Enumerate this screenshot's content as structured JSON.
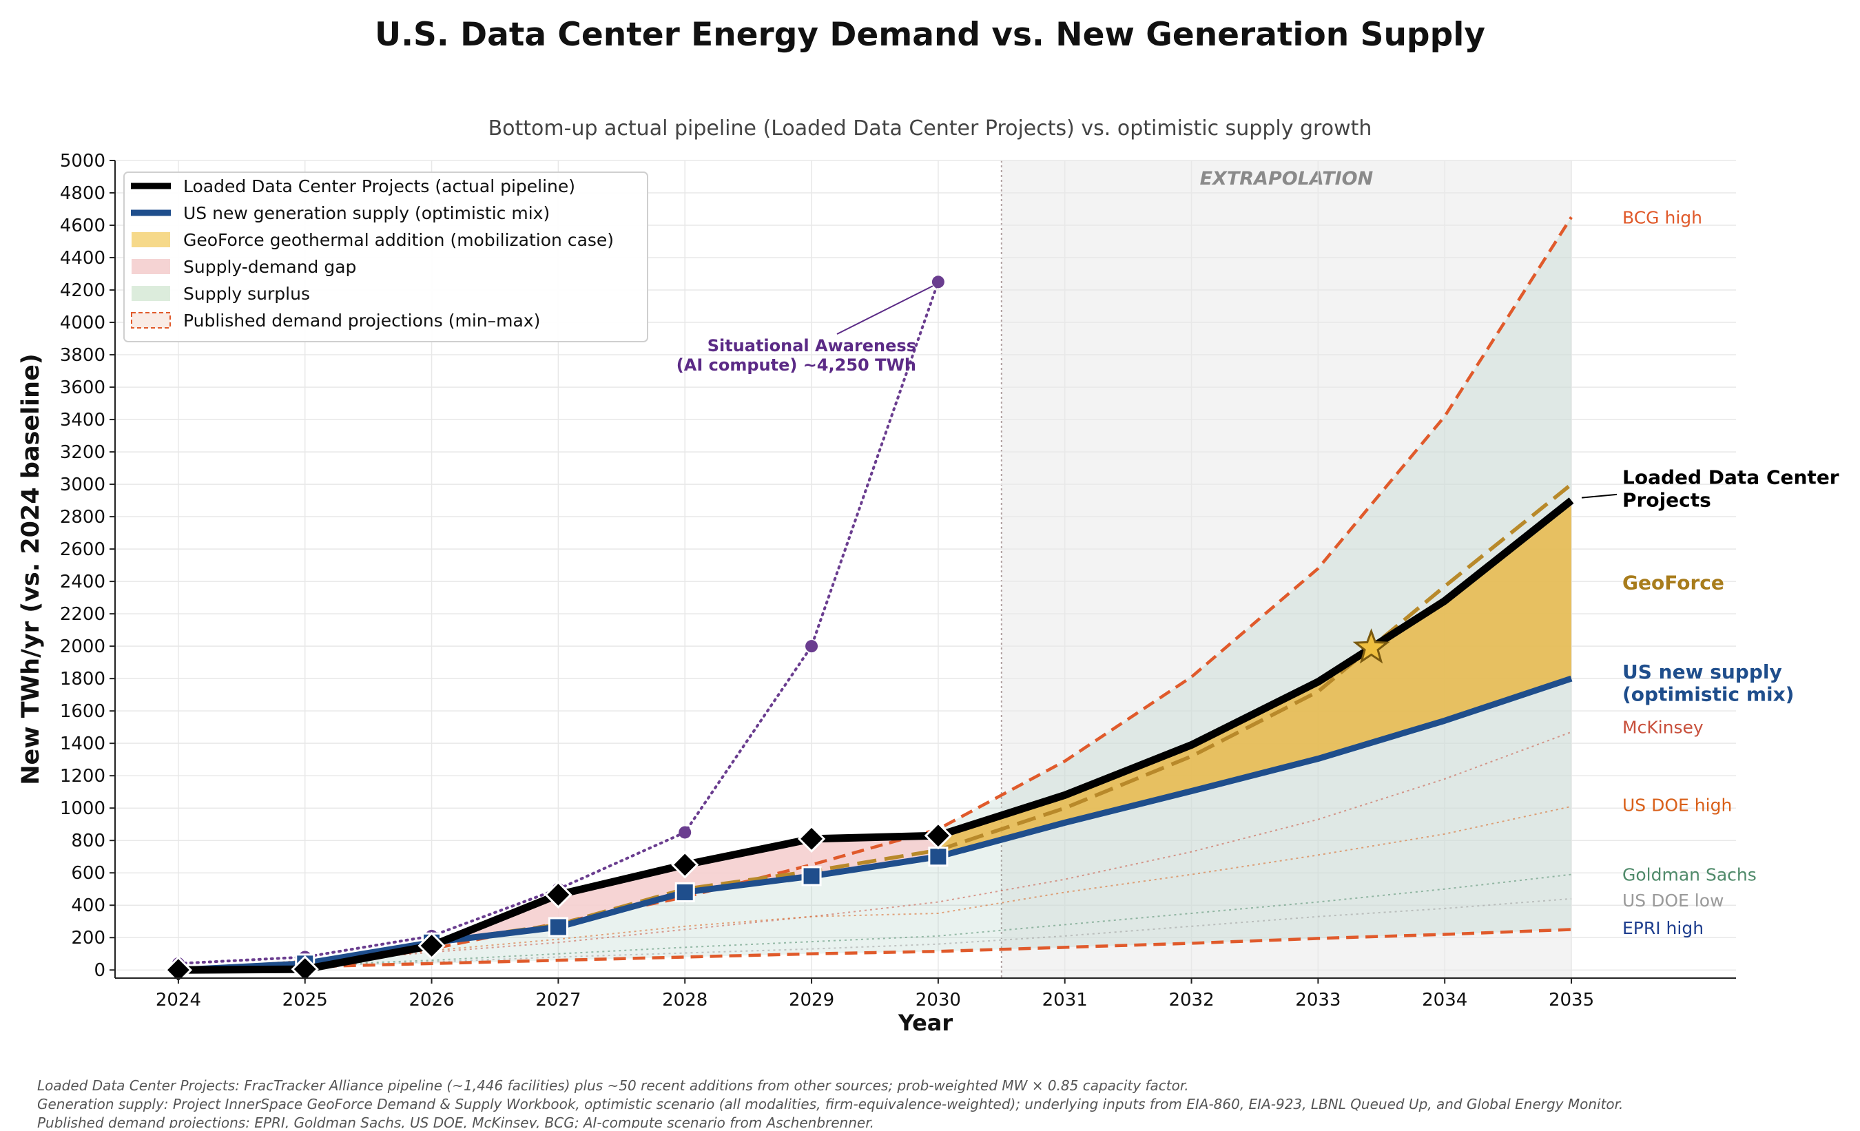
{
  "page": {
    "title": "U.S. Data Center Energy Demand vs. New Generation Supply",
    "subtitle": "Bottom-up actual pipeline (Loaded Data Center Projects) vs. optimistic supply growth",
    "footnotes": [
      "Loaded Data Center Projects: FracTracker Alliance pipeline (~1,446 facilities) plus ~50 recent additions from other sources; prob-weighted MW × 0.85 capacity factor.",
      "Generation supply: Project InnerSpace GeoForce Demand & Supply Workbook, optimistic scenario (all modalities, firm-equivalence-weighted); underlying inputs from EIA-860, EIA-923, LBNL Queued Up, and Global Energy Monitor.",
      "Published demand projections: EPRI, Goldman Sachs, US DOE, McKinsey, BCG; AI-compute scenario from Aschenbrenner."
    ]
  },
  "chart_data": {
    "type": "line",
    "title": "U.S. Data Center Energy Demand vs. New Generation Supply",
    "subtitle": "Bottom-up actual pipeline (Loaded Data Center Projects) vs. optimistic supply growth",
    "xlabel": "Year",
    "ylabel": "New TWh/yr (vs. 2024 baseline)",
    "xlim": [
      2023.5,
      2036.3
    ],
    "ylim": [
      -50,
      5000
    ],
    "x_ticks": [
      2024,
      2025,
      2026,
      2027,
      2028,
      2029,
      2030,
      2031,
      2032,
      2033,
      2034,
      2035
    ],
    "y_ticks": [
      0,
      200,
      400,
      600,
      800,
      1000,
      1200,
      1400,
      1600,
      1800,
      2000,
      2200,
      2400,
      2600,
      2800,
      3000,
      3200,
      3400,
      3600,
      3800,
      4000,
      4200,
      4400,
      4600,
      4800,
      5000
    ],
    "grid": true,
    "legend_position": "top-left",
    "extrapolation": {
      "start": 2030.5,
      "label": "EXTRAPOLATION"
    },
    "legend": [
      {
        "label": "Loaded Data Center Projects (actual pipeline)",
        "kind": "line",
        "color": "#000000"
      },
      {
        "label": "US new generation supply (optimistic mix)",
        "kind": "line",
        "color": "#1f4e8c"
      },
      {
        "label": "GeoForce geothermal addition (mobilization case)",
        "kind": "patch",
        "color": "#f6d98a"
      },
      {
        "label": "Supply-demand gap",
        "kind": "patch",
        "color": "#f5d3d3"
      },
      {
        "label": "Supply surplus",
        "kind": "patch",
        "color": "#dcecdc"
      },
      {
        "label": "Published demand projections (min–max)",
        "kind": "dashed-patch",
        "color": "#e05a2b"
      }
    ],
    "series": [
      {
        "name": "Loaded Data Center Projects",
        "role": "demand",
        "color": "#000000",
        "x": [
          2024,
          2025,
          2026,
          2027,
          2028,
          2029,
          2030,
          2031,
          2032,
          2033,
          2034,
          2035
        ],
        "values": [
          0,
          5,
          150,
          465,
          650,
          810,
          830,
          1080,
          1390,
          1780,
          2280,
          2900
        ]
      },
      {
        "name": "US new supply (optimistic mix)",
        "role": "supply",
        "color": "#1f4e8c",
        "x": [
          2024,
          2025,
          2026,
          2027,
          2028,
          2029,
          2030,
          2031,
          2032,
          2033,
          2034,
          2035
        ],
        "values": [
          0,
          40,
          170,
          265,
          480,
          580,
          700,
          910,
          1105,
          1305,
          1540,
          1800
        ]
      },
      {
        "name": "GeoForce",
        "role": "geoforce",
        "color": "#b8892a",
        "x": [
          2024,
          2025,
          2026,
          2027,
          2028,
          2029,
          2030,
          2031,
          2032,
          2033,
          2034,
          2035
        ],
        "values": [
          0,
          40,
          170,
          280,
          500,
          610,
          740,
          1000,
          1320,
          1720,
          2370,
          3000
        ]
      },
      {
        "name": "BCG high",
        "role": "envelope-max",
        "color": "#e05a2b",
        "x": [
          2025,
          2026,
          2027,
          2028,
          2029,
          2030,
          2031,
          2032,
          2033,
          2034,
          2035
        ],
        "values": [
          10,
          130,
          290,
          450,
          650,
          870,
          1290,
          1810,
          2480,
          3420,
          4650
        ]
      },
      {
        "name": "EPRI high",
        "role": "envelope-min",
        "color": "#e05a2b",
        "x": [
          2025,
          2026,
          2027,
          2028,
          2029,
          2030,
          2031,
          2032,
          2033,
          2034,
          2035
        ],
        "values": [
          20,
          40,
          60,
          80,
          100,
          115,
          140,
          165,
          195,
          220,
          250
        ]
      },
      {
        "name": "McKinsey",
        "role": "projection",
        "color": "#c8503c",
        "x": [
          2024,
          2025,
          2026,
          2027,
          2028,
          2029,
          2030,
          2031,
          2032,
          2033,
          2034,
          2035
        ],
        "values": [
          0,
          40,
          110,
          170,
          250,
          330,
          420,
          560,
          730,
          930,
          1180,
          1470
        ]
      },
      {
        "name": "US DOE high",
        "role": "projection",
        "color": "#d9601a",
        "x": [
          2024,
          2025,
          2026,
          2027,
          2028,
          2029,
          2030,
          2031,
          2032,
          2033,
          2034,
          2035
        ],
        "values": [
          0,
          60,
          120,
          190,
          270,
          330,
          350,
          480,
          590,
          710,
          840,
          1010
        ]
      },
      {
        "name": "Goldman Sachs",
        "role": "projection",
        "color": "#4f8a6a",
        "x": [
          2024,
          2025,
          2026,
          2027,
          2028,
          2029,
          2030,
          2031,
          2032,
          2033,
          2034,
          2035
        ],
        "values": [
          0,
          30,
          60,
          100,
          140,
          175,
          210,
          280,
          350,
          420,
          500,
          590
        ]
      },
      {
        "name": "US DOE low",
        "role": "projection",
        "color": "#9a9a9a",
        "x": [
          2024,
          2025,
          2026,
          2027,
          2028,
          2029,
          2030,
          2031,
          2032,
          2033,
          2034,
          2035
        ],
        "values": [
          0,
          25,
          50,
          80,
          105,
          130,
          160,
          210,
          270,
          330,
          380,
          440
        ]
      },
      {
        "name": "Situational Awareness",
        "role": "ai",
        "color": "#6a3d8f",
        "x": [
          2024,
          2025,
          2026,
          2027,
          2028,
          2029,
          2030
        ],
        "values": [
          40,
          80,
          210,
          500,
          850,
          2000,
          4250
        ]
      }
    ],
    "series_labels": [
      {
        "text": "BCG high",
        "y": 4650,
        "color": "#e05a2b",
        "bold": false
      },
      {
        "text": "Loaded Data Center",
        "y": 3040,
        "color": "#000000",
        "bold": true
      },
      {
        "text": "Projects",
        "y": 2900,
        "color": "#000000",
        "bold": true
      },
      {
        "text": "GeoForce",
        "y": 2390,
        "color": "#a87c1c",
        "bold": true
      },
      {
        "text": "US new supply",
        "y": 1840,
        "color": "#1f4e8c",
        "bold": true
      },
      {
        "text": "(optimistic mix)",
        "y": 1700,
        "color": "#1f4e8c",
        "bold": true
      },
      {
        "text": "McKinsey",
        "y": 1500,
        "color": "#c8503c",
        "bold": false
      },
      {
        "text": "US DOE high",
        "y": 1020,
        "color": "#d9601a",
        "bold": false
      },
      {
        "text": "Goldman Sachs",
        "y": 590,
        "color": "#4f8a6a",
        "bold": false
      },
      {
        "text": "US DOE low",
        "y": 430,
        "color": "#9a9a9a",
        "bold": false
      },
      {
        "text": "EPRI high",
        "y": 260,
        "color": "#1f3f8f",
        "bold": false
      }
    ],
    "annotations": [
      {
        "text": "Situational Awareness",
        "line2": "(AI compute) ~4,250 TWh",
        "point": [
          2030,
          4250
        ],
        "color": "#5b2a86"
      }
    ],
    "crossover_marker": {
      "x": 2033.42,
      "y": 1990,
      "color": "#f0c040"
    }
  }
}
